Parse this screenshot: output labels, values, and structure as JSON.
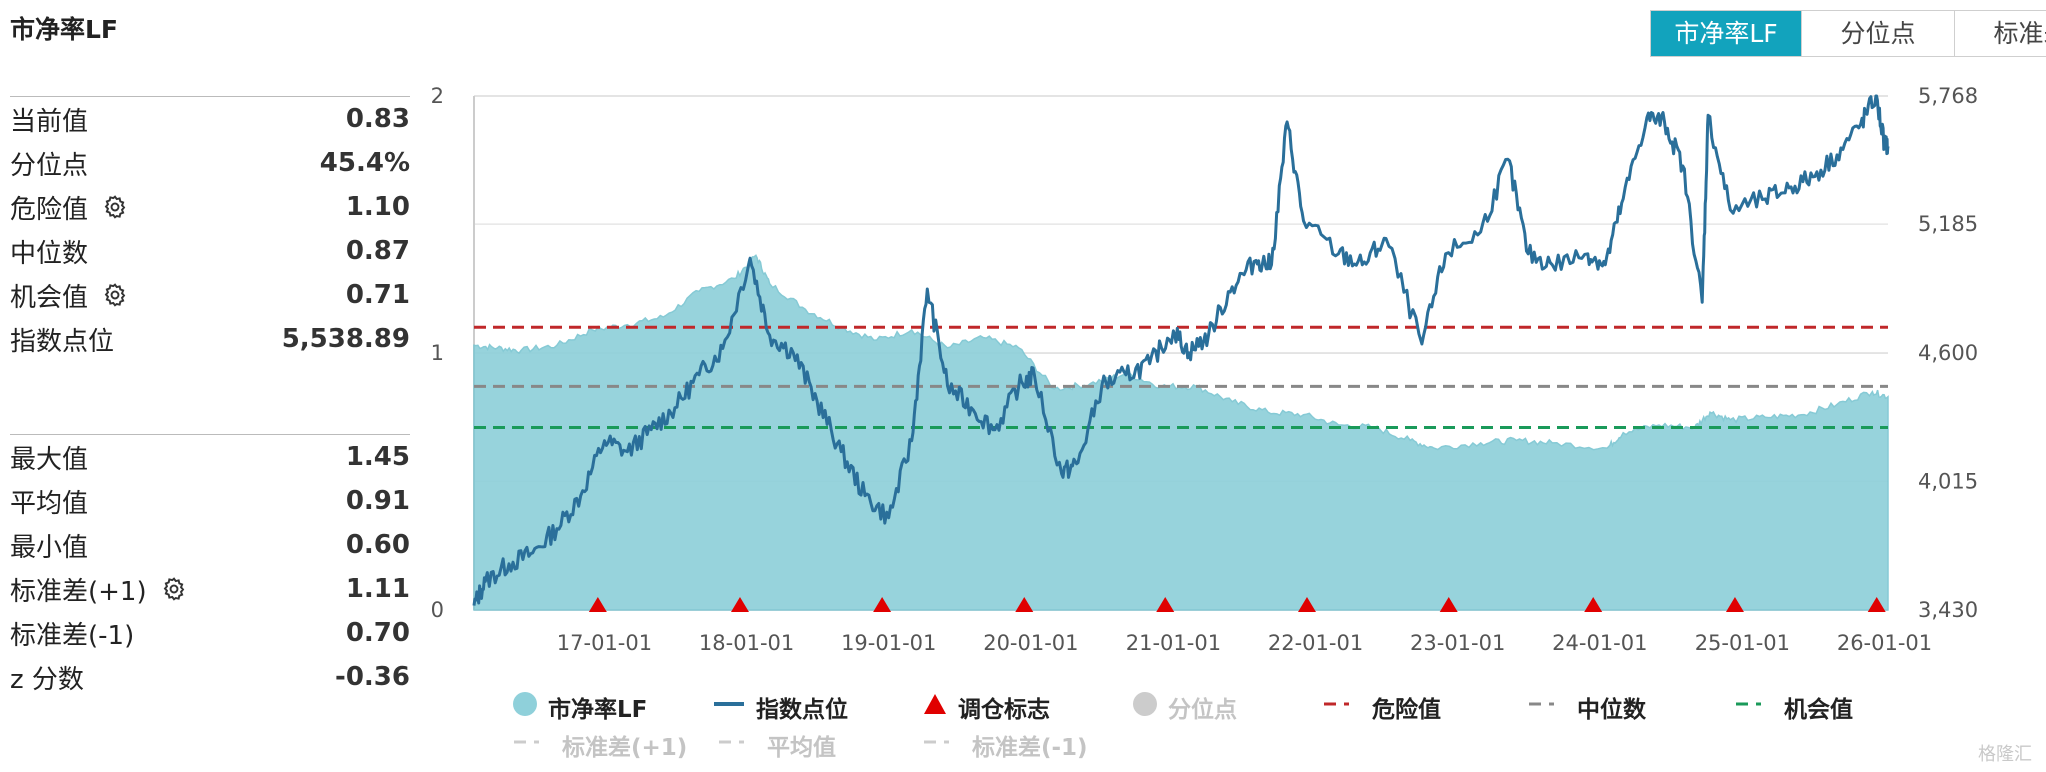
{
  "title": "市净率LF",
  "tabs": [
    {
      "label": "市净率LF",
      "active": true
    },
    {
      "label": "分位点",
      "active": false
    },
    {
      "label": "标准差",
      "active": false
    }
  ],
  "stats_top": [
    {
      "label": "当前值",
      "value": "0.83",
      "gear": false
    },
    {
      "label": "分位点",
      "value": "45.4%",
      "gear": false
    },
    {
      "label": "危险值",
      "value": "1.10",
      "gear": true
    },
    {
      "label": "中位数",
      "value": "0.87",
      "gear": false
    },
    {
      "label": "机会值",
      "value": "0.71",
      "gear": true
    },
    {
      "label": "指数点位",
      "value": "5,538.89",
      "gear": false
    }
  ],
  "stats_bottom": [
    {
      "label": "最大值",
      "value": "1.45",
      "gear": false
    },
    {
      "label": "平均值",
      "value": "0.91",
      "gear": false
    },
    {
      "label": "最小值",
      "value": "0.60",
      "gear": false
    },
    {
      "label": "标准差(+1)",
      "value": "1.11",
      "gear": true
    },
    {
      "label": "标准差(-1)",
      "value": "0.70",
      "gear": false
    },
    {
      "label": "z 分数",
      "value": "-0.36",
      "gear": false
    }
  ],
  "legend": [
    {
      "label": "市净率LF",
      "symbol": "circle",
      "color": "#8fd0da",
      "active": true
    },
    {
      "label": "指数点位",
      "symbol": "line",
      "color": "#2a6f9a",
      "active": true
    },
    {
      "label": "调仓标志",
      "symbol": "triangle",
      "color": "#e00000",
      "active": true
    },
    {
      "label": "分位点",
      "symbol": "circle",
      "color": "#cccccc",
      "active": false
    },
    {
      "label": "危险值",
      "symbol": "dash",
      "color": "#c0282a",
      "active": true
    },
    {
      "label": "中位数",
      "symbol": "dash",
      "color": "#888888",
      "active": true
    },
    {
      "label": "机会值",
      "symbol": "dash",
      "color": "#1a9a5a",
      "active": true
    },
    {
      "label": "标准差(+1)",
      "symbol": "dash",
      "color": "#cccccc",
      "active": false
    },
    {
      "label": "平均值",
      "symbol": "dash",
      "color": "#cccccc",
      "active": false
    },
    {
      "label": "标准差(-1)",
      "symbol": "dash",
      "color": "#cccccc",
      "active": false
    }
  ],
  "watermark": "格隆汇",
  "chart_data": {
    "type": "area",
    "x_tick_labels": [
      "17-01-01",
      "18-01-01",
      "19-01-01",
      "20-01-01",
      "21-01-01",
      "22-01-01",
      "23-01-01",
      "24-01-01",
      "25-01-01",
      "26-01-01"
    ],
    "x_range": [
      "2016-02-01",
      "2026-01-10"
    ],
    "y_left": {
      "ticks": [
        "0",
        "1",
        "2"
      ],
      "range": [
        0,
        2
      ]
    },
    "y_right": {
      "ticks": [
        "3,430",
        "4,015",
        "4,600",
        "5,185",
        "5,768"
      ],
      "range": [
        3430,
        5768
      ]
    },
    "grid": "horizontal",
    "legend_position": "bottom",
    "reference_lines": {
      "danger": 1.1,
      "median": 0.87,
      "opportunity": 0.71
    },
    "rebalance_markers": [
      "2016-12-15",
      "2017-12-15",
      "2018-12-15",
      "2019-12-15",
      "2020-12-11",
      "2021-12-10",
      "2022-12-09",
      "2023-12-15",
      "2024-12-13",
      "2025-12-12"
    ],
    "series": [
      {
        "name": "市净率LF",
        "axis": "left",
        "color": "#8fd0da",
        "points": [
          [
            "2016-02-01",
            1.03
          ],
          [
            "2016-04-01",
            1.02
          ],
          [
            "2016-06-01",
            1.01
          ],
          [
            "2016-09-01",
            1.03
          ],
          [
            "2016-12-01",
            1.09
          ],
          [
            "2017-03-01",
            1.11
          ],
          [
            "2017-06-01",
            1.14
          ],
          [
            "2017-09-01",
            1.24
          ],
          [
            "2017-12-01",
            1.29
          ],
          [
            "2018-01-25",
            1.38
          ],
          [
            "2018-03-01",
            1.27
          ],
          [
            "2018-06-01",
            1.17
          ],
          [
            "2018-09-01",
            1.1
          ],
          [
            "2018-12-01",
            1.05
          ],
          [
            "2019-03-01",
            1.09
          ],
          [
            "2019-06-01",
            1.02
          ],
          [
            "2019-09-01",
            1.06
          ],
          [
            "2019-12-01",
            1.02
          ],
          [
            "2020-03-01",
            0.86
          ],
          [
            "2020-06-01",
            0.88
          ],
          [
            "2020-09-01",
            0.92
          ],
          [
            "2020-12-01",
            0.87
          ],
          [
            "2021-03-01",
            0.87
          ],
          [
            "2021-06-01",
            0.81
          ],
          [
            "2021-09-01",
            0.77
          ],
          [
            "2021-12-01",
            0.76
          ],
          [
            "2022-03-01",
            0.72
          ],
          [
            "2022-06-01",
            0.71
          ],
          [
            "2022-09-01",
            0.66
          ],
          [
            "2022-11-01",
            0.63
          ],
          [
            "2023-03-01",
            0.65
          ],
          [
            "2023-06-01",
            0.66
          ],
          [
            "2023-09-01",
            0.65
          ],
          [
            "2024-01-20",
            0.63
          ],
          [
            "2024-03-01",
            0.69
          ],
          [
            "2024-06-01",
            0.72
          ],
          [
            "2024-09-01",
            0.71
          ],
          [
            "2024-10-10",
            0.77
          ],
          [
            "2024-12-01",
            0.74
          ],
          [
            "2025-03-01",
            0.75
          ],
          [
            "2025-06-01",
            0.76
          ],
          [
            "2025-09-01",
            0.8
          ],
          [
            "2025-12-01",
            0.85
          ],
          [
            "2026-01-10",
            0.83
          ]
        ]
      },
      {
        "name": "指数点位",
        "axis": "right",
        "color": "#2a6f9a",
        "points": [
          [
            "2016-02-01",
            3450
          ],
          [
            "2016-03-01",
            3560
          ],
          [
            "2016-05-01",
            3640
          ],
          [
            "2016-07-01",
            3690
          ],
          [
            "2016-09-01",
            3800
          ],
          [
            "2016-11-01",
            3950
          ],
          [
            "2017-01-01",
            4200
          ],
          [
            "2017-03-01",
            4150
          ],
          [
            "2017-05-01",
            4250
          ],
          [
            "2017-07-01",
            4350
          ],
          [
            "2017-09-01",
            4500
          ],
          [
            "2017-11-01",
            4620
          ],
          [
            "2018-01-10",
            5030
          ],
          [
            "2018-03-01",
            4680
          ],
          [
            "2018-05-01",
            4600
          ],
          [
            "2018-07-01",
            4380
          ],
          [
            "2018-09-01",
            4150
          ],
          [
            "2018-11-01",
            3950
          ],
          [
            "2019-01-01",
            3850
          ],
          [
            "2019-03-01",
            4200
          ],
          [
            "2019-04-10",
            4890
          ],
          [
            "2019-06-01",
            4450
          ],
          [
            "2019-08-01",
            4350
          ],
          [
            "2019-10-01",
            4250
          ],
          [
            "2019-12-01",
            4450
          ],
          [
            "2020-01-10",
            4500
          ],
          [
            "2020-03-20",
            4050
          ],
          [
            "2020-05-01",
            4100
          ],
          [
            "2020-07-01",
            4450
          ],
          [
            "2020-09-01",
            4500
          ],
          [
            "2020-11-01",
            4550
          ],
          [
            "2021-01-01",
            4700
          ],
          [
            "2021-02-10",
            4600
          ],
          [
            "2021-04-01",
            4680
          ],
          [
            "2021-06-01",
            4900
          ],
          [
            "2021-08-01",
            5020
          ],
          [
            "2021-09-10",
            5000
          ],
          [
            "2021-10-20",
            5650
          ],
          [
            "2021-12-01",
            5200
          ],
          [
            "2022-03-01",
            5050
          ],
          [
            "2022-05-01",
            5000
          ],
          [
            "2022-07-01",
            5120
          ],
          [
            "2022-10-01",
            4640
          ],
          [
            "2022-12-01",
            5050
          ],
          [
            "2023-03-01",
            5150
          ],
          [
            "2023-05-10",
            5480
          ],
          [
            "2023-07-01",
            5050
          ],
          [
            "2023-09-01",
            5000
          ],
          [
            "2023-12-01",
            5050
          ],
          [
            "2024-01-15",
            5000
          ],
          [
            "2024-03-01",
            5300
          ],
          [
            "2024-05-01",
            5670
          ],
          [
            "2024-06-15",
            5650
          ],
          [
            "2024-08-01",
            5450
          ],
          [
            "2024-09-20",
            4830
          ],
          [
            "2024-10-05",
            5680
          ],
          [
            "2024-12-01",
            5250
          ],
          [
            "2025-03-01",
            5300
          ],
          [
            "2025-05-01",
            5350
          ],
          [
            "2025-07-01",
            5400
          ],
          [
            "2025-09-01",
            5500
          ],
          [
            "2025-11-01",
            5640
          ],
          [
            "2025-12-10",
            5768
          ],
          [
            "2026-01-01",
            5550
          ],
          [
            "2026-01-10",
            5539
          ]
        ]
      }
    ]
  }
}
